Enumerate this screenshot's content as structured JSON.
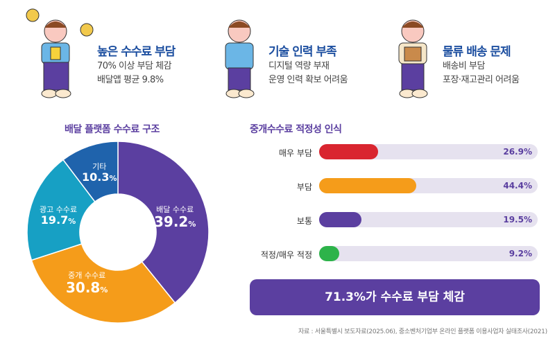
{
  "problems": [
    {
      "title": "높은 수수료 부담",
      "lines": [
        "70% 이상 부담 체감",
        "배달앱 평균 9.8%"
      ],
      "icon": "worried-person-with-money-icon"
    },
    {
      "title": "기술 인력 부족",
      "lines": [
        "디지털 역량 부재",
        "운영 인력 확보 어려움"
      ],
      "icon": "confused-person-icon"
    },
    {
      "title": "물류 배송 문제",
      "lines": [
        "배송비 부담",
        "포장·재고관리 어려움"
      ],
      "icon": "person-holding-box-icon"
    }
  ],
  "colors": {
    "purple": "#5b3fa0",
    "orange": "#f59c1a",
    "teal": "#17a0c4",
    "blue": "#1f63ac",
    "red": "#d9252f",
    "green": "#2db34a",
    "title_blue": "#1d4fa0"
  },
  "chart_data": [
    {
      "type": "pie",
      "title": "배달 플랫폼 수수료 구조",
      "donut": true,
      "slices": [
        {
          "name": "배달 수수료",
          "value": 39.2,
          "color": "#5b3fa0"
        },
        {
          "name": "중개 수수료",
          "value": 30.8,
          "color": "#f59c1a"
        },
        {
          "name": "광고 수수료",
          "value": 19.7,
          "color": "#17a0c4"
        },
        {
          "name": "기타",
          "value": 10.3,
          "color": "#1f63ac"
        }
      ],
      "unit": "%"
    },
    {
      "type": "bar",
      "orientation": "horizontal",
      "title": "중개수수료 적정성 인식",
      "categories": [
        "매우 부담",
        "부담",
        "보통",
        "적정/매우 적정"
      ],
      "values": [
        26.9,
        44.4,
        19.5,
        9.2
      ],
      "colors": [
        "#d9252f",
        "#f59c1a",
        "#5b3fa0",
        "#2db34a"
      ],
      "unit": "%"
    }
  ],
  "banner": "71.3%가 수수료 부담 체감",
  "source": "자료 : 서울특별시 보도자료(2025.06), 중소벤처기업부 온라인 플랫폼 이용사업자 실태조사(2021)"
}
